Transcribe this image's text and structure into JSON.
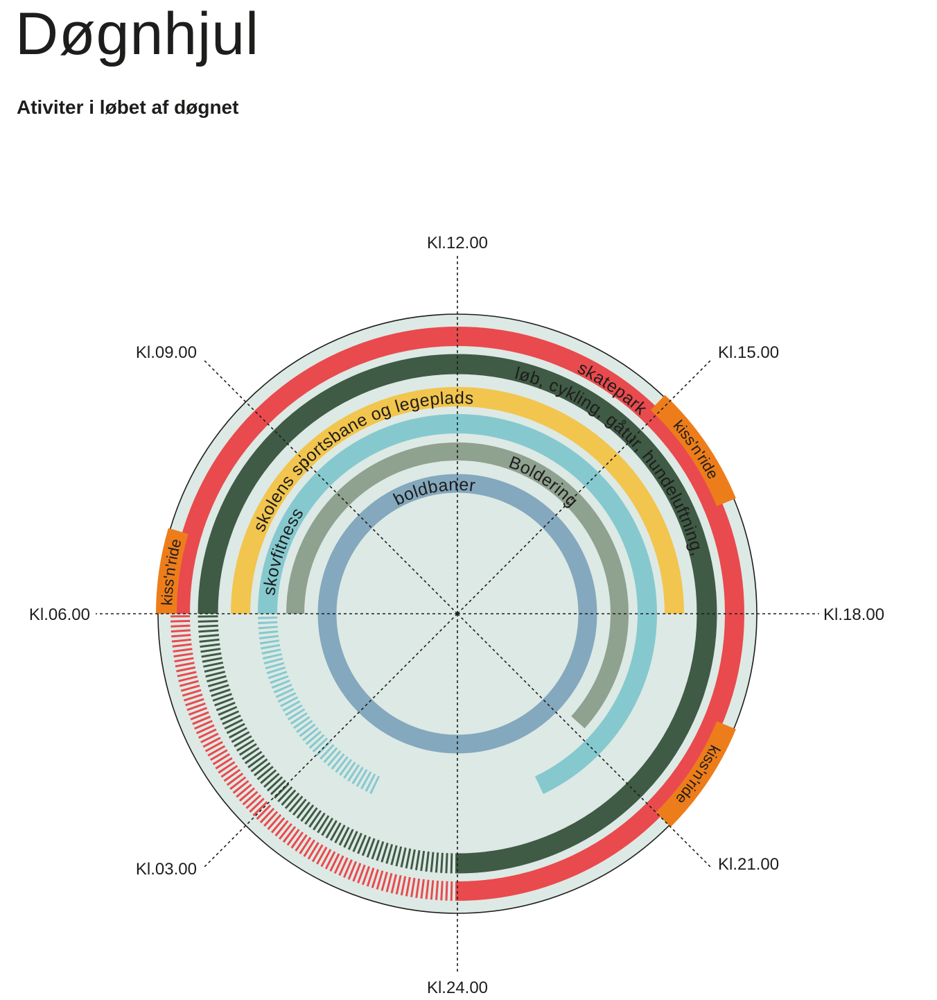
{
  "header": {
    "title": "Døgnhjul",
    "subtitle": "Ativiter i løbet af døgnet"
  },
  "colors": {
    "background_disc": "#dde9e4",
    "outline": "#1d1d1b",
    "orange": "#ed7d1a"
  },
  "hour_labels": [
    {
      "hour": 12,
      "label": "Kl.12.00"
    },
    {
      "hour": 15,
      "label": "Kl.15.00"
    },
    {
      "hour": 18,
      "label": "Kl.18.00"
    },
    {
      "hour": 21,
      "label": "Kl.21.00"
    },
    {
      "hour": 24,
      "label": "Kl.24.00"
    },
    {
      "hour": 3,
      "label": "Kl.03.00"
    },
    {
      "hour": 6,
      "label": "Kl.06.00"
    },
    {
      "hour": 9,
      "label": "Kl.09.00"
    }
  ],
  "rings": [
    {
      "name": "skatepark",
      "color": "#e94a4e",
      "solid": [
        [
          6,
          24
        ]
      ],
      "dashed": [
        [
          0,
          6
        ]
      ],
      "label": "skatepark",
      "label_hour": 14.3
    },
    {
      "name": "løb, cykling, gåtur, hundeluftning,",
      "color": "#3f5a45",
      "solid": [
        [
          6,
          24
        ]
      ],
      "dashed": [
        [
          0,
          6
        ]
      ],
      "label": "løb, cykling, gåtur, hundeluftning,",
      "label_hour": 15
    },
    {
      "name": "skolens sportsbane og legeplads",
      "color": "#f2c54e",
      "solid": [
        [
          6,
          18
        ]
      ],
      "dashed": [],
      "label": "skolens sportsbane og legeplads",
      "label_hour": 9.9
    },
    {
      "name": "skovfitness",
      "color": "#85c9cf",
      "solid": [
        [
          6,
          22.3
        ]
      ],
      "dashed": [
        [
          1.7,
          6
        ]
      ],
      "label": "skovfitness",
      "label_hour": 7.3
    },
    {
      "name": "Boldering",
      "color": "#8fa18f",
      "solid": [
        [
          6,
          20.8
        ]
      ],
      "dashed": [],
      "label": "Boldering",
      "label_hour": 14.2
    },
    {
      "name": "boldbaner",
      "color": "#84a8bd",
      "solid": [
        [
          0,
          24
        ]
      ],
      "dashed": [],
      "label": "boldbaner",
      "label_hour": 11.3
    }
  ],
  "kiss_n_ride": [
    {
      "label": "kiss'n'ride",
      "start": 6,
      "end": 7.1
    },
    {
      "label": "kiss'n'ride",
      "start": 14.9,
      "end": 16.5
    },
    {
      "label": "kiss'n'ride",
      "start": 19.5,
      "end": 21
    }
  ]
}
